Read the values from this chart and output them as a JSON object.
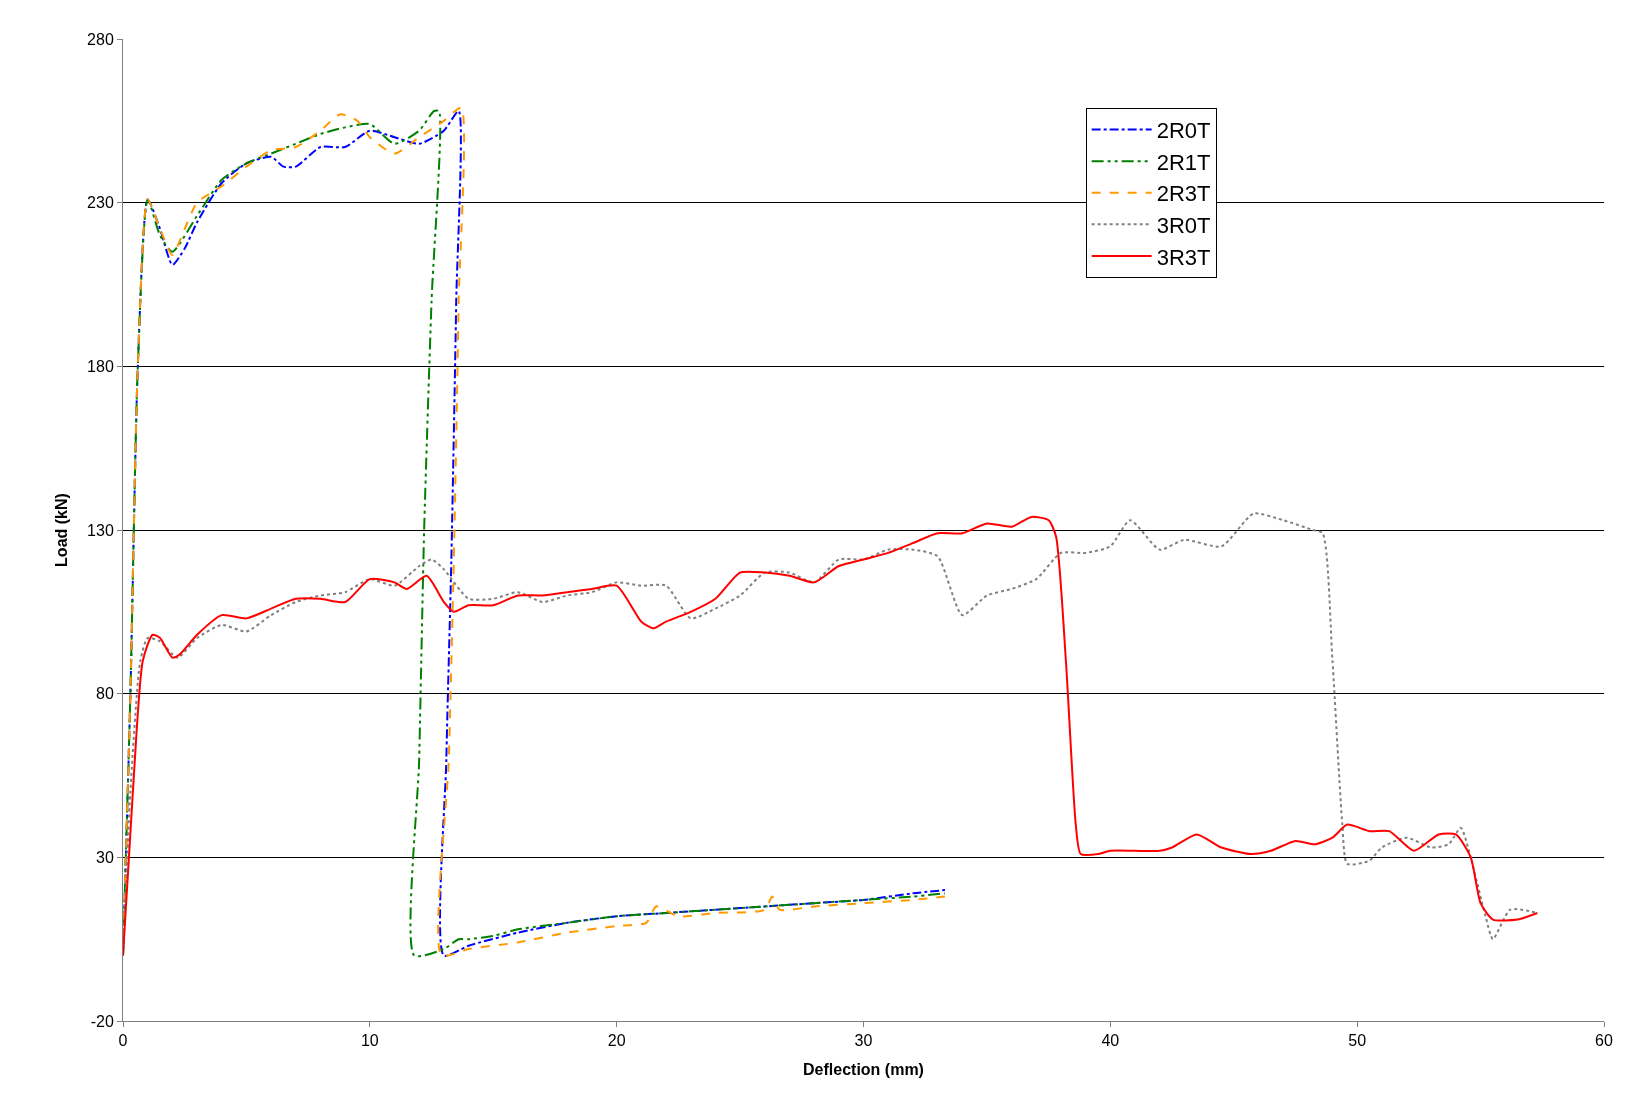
{
  "chart_data": {
    "type": "line",
    "xlabel": "Deflection (mm)",
    "ylabel": "Load (kN)",
    "xlim": [
      0,
      60
    ],
    "xticks": [
      0,
      10,
      20,
      30,
      40,
      50,
      60
    ],
    "ylim": [
      -20,
      280
    ],
    "yticks": [
      -20,
      30,
      80,
      130,
      180,
      230,
      280
    ],
    "grid": "y",
    "legend": "top right",
    "marker": "none",
    "series": [
      {
        "name": "2R0T",
        "color": "#0000ff",
        "line_style": "dashdot",
        "x": [
          0,
          0.3,
          0.6,
          1.0,
          1.5,
          2.0,
          2.5,
          3,
          4,
          5,
          6,
          6.5,
          7,
          8,
          9,
          10,
          11,
          12,
          13,
          13.6,
          13.5,
          13.3,
          13.1,
          13.0,
          14,
          16,
          18,
          20,
          22,
          24,
          26,
          28,
          30,
          32,
          33.3
        ],
        "values": [
          0,
          80,
          180,
          231,
          222,
          211,
          216,
          224,
          236,
          242,
          244,
          241,
          241,
          247,
          247,
          252,
          250,
          248,
          252,
          258,
          200,
          120,
          60,
          0,
          3,
          7,
          10,
          12,
          13,
          14,
          15,
          16,
          17,
          19,
          20
        ]
      },
      {
        "name": "2R1T",
        "color": "#008000",
        "line_style": "dashdotdot",
        "x": [
          0,
          0.3,
          0.6,
          1.0,
          1.5,
          2.0,
          3,
          4,
          5,
          6,
          7,
          8,
          9,
          10,
          11,
          12,
          12.6,
          12.8,
          12.5,
          12.2,
          12.0,
          11.8,
          13,
          13.6,
          14,
          15,
          16,
          18,
          20,
          22,
          24,
          26,
          28,
          30,
          32,
          33.3
        ],
        "values": [
          0,
          80,
          180,
          231,
          220,
          215,
          226,
          237,
          242,
          245,
          248,
          251,
          253,
          254,
          248,
          252,
          258,
          258,
          200,
          130,
          60,
          0,
          2,
          5,
          5,
          6,
          8,
          10,
          12,
          13,
          14,
          15,
          16,
          17,
          18,
          19
        ]
      },
      {
        "name": "2R3T",
        "color": "#ff9900",
        "line_style": "dashed",
        "x": [
          0,
          0.3,
          0.6,
          1.0,
          1.5,
          2.0,
          2.5,
          3,
          4,
          5,
          6,
          7,
          8,
          8.8,
          9.5,
          10,
          11,
          12,
          13,
          13.7,
          13.6,
          13.4,
          13.2,
          12.9,
          14,
          16,
          18,
          20,
          21.2,
          21.6,
          22.5,
          24,
          26,
          26.3,
          26.6,
          28,
          30,
          32,
          33.3
        ],
        "values": [
          0,
          80,
          180,
          231,
          222,
          214,
          222,
          230,
          235,
          241,
          246,
          247,
          252,
          257,
          255,
          250,
          245,
          250,
          255,
          259,
          200,
          120,
          60,
          0,
          2,
          4,
          7,
          9,
          10,
          15,
          12,
          13,
          14,
          18,
          14,
          15,
          16,
          17,
          18
        ]
      },
      {
        "name": "3R0T",
        "color": "#808080",
        "line_style": "dotted",
        "x": [
          0,
          0.3,
          0.7,
          1.0,
          1.5,
          2.2,
          3,
          4,
          5,
          6,
          7,
          8,
          9,
          10,
          11,
          12,
          12.5,
          13,
          14,
          15,
          16,
          17,
          18,
          19,
          20,
          21,
          22,
          23,
          24,
          25,
          26,
          27,
          28,
          29,
          30,
          31,
          32,
          33,
          34,
          35,
          36,
          37,
          38,
          39,
          40,
          40.8,
          42,
          43,
          44.5,
          45.8,
          47,
          48.2,
          48.6,
          49.0,
          49.4,
          49.6,
          50.5,
          51,
          52,
          53,
          53.7,
          54.2,
          54.6,
          55.2,
          55.5,
          56.2,
          57.3
        ],
        "values": [
          0,
          50,
          90,
          97,
          96,
          91,
          97,
          101,
          99,
          104,
          108,
          110,
          111,
          115,
          113,
          119,
          121,
          118,
          109,
          109,
          111,
          108,
          110,
          111,
          114,
          113,
          113,
          103,
          106,
          110,
          117,
          117,
          114,
          121,
          121,
          124,
          124,
          122,
          104,
          110,
          112,
          115,
          123,
          123,
          125,
          133,
          124,
          127,
          125,
          135,
          133,
          130,
          129,
          90,
          40,
          28,
          29,
          33,
          36,
          33,
          34,
          39,
          30,
          12,
          5,
          14,
          13
        ]
      },
      {
        "name": "3R3T",
        "color": "#ff0000",
        "line_style": "solid",
        "x": [
          0,
          0.4,
          0.8,
          1.2,
          1.5,
          2.0,
          2.3,
          3,
          4,
          5,
          6,
          7,
          8,
          9,
          10,
          11,
          11.5,
          12.3,
          13,
          13.4,
          14,
          15,
          16,
          17,
          18,
          19,
          20,
          21,
          21.5,
          22,
          23,
          24,
          25,
          26,
          27,
          28,
          29,
          30,
          31,
          32,
          33,
          34,
          35,
          36,
          36.8,
          37.5,
          37.8,
          38.2,
          38.6,
          38.8,
          39.5,
          40,
          41,
          42,
          42.5,
          43.5,
          44.5,
          45.7,
          46.5,
          47.5,
          48.3,
          49,
          49.6,
          50.5,
          51.3,
          52.3,
          53.3,
          54,
          54.6,
          55,
          55.5,
          56.5,
          57.3
        ],
        "values": [
          0,
          50,
          90,
          98,
          97,
          91,
          92,
          98,
          104,
          103,
          106,
          109,
          109,
          108,
          115,
          114,
          112,
          116,
          108,
          105,
          107,
          107,
          110,
          110,
          111,
          112,
          113,
          102,
          100,
          102,
          105,
          109,
          117,
          117,
          116,
          114,
          119,
          121,
          123,
          126,
          129,
          129,
          132,
          131,
          134,
          133,
          128,
          90,
          40,
          31,
          31,
          32,
          32,
          32,
          33,
          37,
          33,
          31,
          32,
          35,
          34,
          36,
          40,
          38,
          38,
          32,
          37,
          37,
          30,
          16,
          11,
          11,
          13
        ]
      }
    ]
  }
}
